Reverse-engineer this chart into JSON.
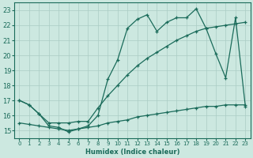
{
  "xlabel": "Humidex (Indice chaleur)",
  "xlim": [
    -0.5,
    23.5
  ],
  "ylim": [
    14.5,
    23.5
  ],
  "yticks": [
    15,
    16,
    17,
    18,
    19,
    20,
    21,
    22,
    23
  ],
  "xticks": [
    0,
    1,
    2,
    3,
    4,
    5,
    6,
    7,
    8,
    9,
    10,
    11,
    12,
    13,
    14,
    15,
    16,
    17,
    18,
    19,
    20,
    21,
    22,
    23
  ],
  "bg_color": "#cce8e0",
  "grid_color": "#aaccC4",
  "line_color": "#1a6b5a",
  "line1_x": [
    0,
    1,
    2,
    3,
    4,
    5,
    6,
    7,
    8,
    9,
    10,
    11,
    12,
    13,
    14,
    15,
    16,
    17,
    18,
    19,
    20,
    21,
    22,
    23
  ],
  "line1_y": [
    17.0,
    16.7,
    16.1,
    15.3,
    15.2,
    14.9,
    15.1,
    15.3,
    16.0,
    18.4,
    19.7,
    21.8,
    22.4,
    22.7,
    21.6,
    22.2,
    22.5,
    22.5,
    23.1,
    21.8,
    20.1,
    18.5,
    22.5,
    16.6
  ],
  "line2_x": [
    0,
    1,
    2,
    3,
    4,
    5,
    6,
    7,
    8,
    9,
    10,
    11,
    12,
    13,
    14,
    15,
    16,
    17,
    18,
    19,
    20,
    21,
    22,
    23
  ],
  "line2_y": [
    17.0,
    16.7,
    16.1,
    15.5,
    15.5,
    15.5,
    15.6,
    15.6,
    16.5,
    17.3,
    18.0,
    18.7,
    19.3,
    19.8,
    20.2,
    20.6,
    21.0,
    21.3,
    21.6,
    21.8,
    21.9,
    22.0,
    22.1,
    22.2
  ],
  "line3_x": [
    0,
    1,
    2,
    3,
    4,
    5,
    6,
    7,
    8,
    9,
    10,
    11,
    12,
    13,
    14,
    15,
    16,
    17,
    18,
    19,
    20,
    21,
    22,
    23
  ],
  "line3_y": [
    15.5,
    15.4,
    15.3,
    15.2,
    15.1,
    15.0,
    15.1,
    15.2,
    15.3,
    15.5,
    15.6,
    15.7,
    15.9,
    16.0,
    16.1,
    16.2,
    16.3,
    16.4,
    16.5,
    16.6,
    16.6,
    16.7,
    16.7,
    16.7
  ]
}
